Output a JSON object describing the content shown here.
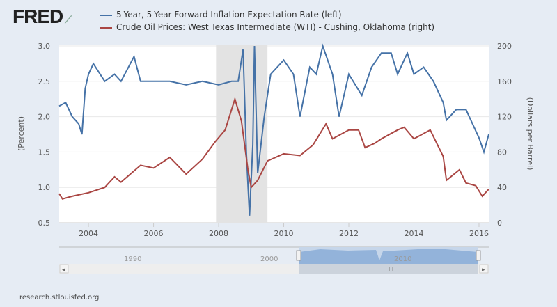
{
  "header": {
    "logo": "FRED"
  },
  "footer": {
    "source": "research.stlouisfed.org"
  },
  "navigator": {
    "labels": [
      "1990",
      "2000",
      "2010"
    ],
    "scroll_left": "◂",
    "scroll_right": "▸",
    "grip": "III"
  },
  "chart_data": {
    "type": "line",
    "title": "",
    "ylabel_left": "(Percent)",
    "ylabel_right": "(Dollars per Barrel)",
    "xlim": [
      2003.1,
      2016.3
    ],
    "ylim_left": [
      0.5,
      3.0
    ],
    "ylim_right": [
      0,
      200
    ],
    "x_ticks": [
      "2004",
      "2006",
      "2008",
      "2010",
      "2012",
      "2014",
      "2016"
    ],
    "y_ticks_left": [
      "0.5",
      "1.0",
      "1.5",
      "2.0",
      "2.5",
      "3.0"
    ],
    "y_ticks_right": [
      "0",
      "40",
      "80",
      "120",
      "160",
      "200"
    ],
    "recession": [
      2007.92,
      2009.5
    ],
    "series": [
      {
        "name": "5-Year, 5-Year Forward Inflation Expectation Rate (left)",
        "color": "#4572a7",
        "axis": "left",
        "x": [
          2003.1,
          2003.3,
          2003.5,
          2003.7,
          2003.8,
          2003.9,
          2004.0,
          2004.15,
          2004.5,
          2004.8,
          2005.0,
          2005.4,
          2005.6,
          2006.0,
          2006.5,
          2007.0,
          2007.5,
          2008.0,
          2008.4,
          2008.6,
          2008.75,
          2008.85,
          2008.95,
          2009.05,
          2009.1,
          2009.2,
          2009.4,
          2009.6,
          2010.0,
          2010.3,
          2010.5,
          2010.8,
          2011.0,
          2011.2,
          2011.5,
          2011.7,
          2012.0,
          2012.4,
          2012.7,
          2013.0,
          2013.3,
          2013.5,
          2013.8,
          2014.0,
          2014.3,
          2014.6,
          2014.9,
          2015.0,
          2015.3,
          2015.6,
          2015.9,
          2016.0,
          2016.15,
          2016.3
        ],
        "y": [
          2.15,
          2.2,
          2.0,
          1.9,
          1.75,
          2.4,
          2.6,
          2.75,
          2.5,
          2.6,
          2.5,
          2.85,
          2.5,
          2.5,
          2.5,
          2.45,
          2.5,
          2.45,
          2.5,
          2.5,
          2.95,
          1.5,
          0.6,
          1.6,
          3.0,
          1.2,
          2.0,
          2.6,
          2.8,
          2.6,
          2.0,
          2.7,
          2.6,
          3.0,
          2.6,
          2.0,
          2.6,
          2.3,
          2.7,
          2.9,
          2.9,
          2.6,
          2.9,
          2.6,
          2.7,
          2.5,
          2.2,
          1.95,
          2.1,
          2.1,
          1.8,
          1.7,
          1.5,
          1.75
        ]
      },
      {
        "name": "Crude Oil Prices: West Texas Intermediate (WTI) - Cushing, Oklahoma (right)",
        "color": "#aa4643",
        "axis": "right",
        "x": [
          2003.1,
          2003.2,
          2003.5,
          2004.0,
          2004.5,
          2004.8,
          2005.0,
          2005.6,
          2006.0,
          2006.5,
          2007.0,
          2007.5,
          2007.9,
          2008.2,
          2008.5,
          2008.7,
          2008.9,
          2009.0,
          2009.2,
          2009.5,
          2010.0,
          2010.5,
          2010.9,
          2011.3,
          2011.5,
          2012.0,
          2012.3,
          2012.5,
          2012.8,
          2013.0,
          2013.5,
          2013.7,
          2014.0,
          2014.5,
          2014.9,
          2015.0,
          2015.4,
          2015.6,
          2015.9,
          2016.1,
          2016.3
        ],
        "y": [
          33,
          27,
          30,
          34,
          40,
          52,
          46,
          65,
          62,
          74,
          55,
          72,
          92,
          105,
          140,
          115,
          60,
          40,
          48,
          70,
          78,
          76,
          88,
          112,
          95,
          105,
          105,
          85,
          90,
          95,
          105,
          108,
          95,
          105,
          75,
          48,
          60,
          45,
          42,
          30,
          38
        ]
      }
    ]
  }
}
